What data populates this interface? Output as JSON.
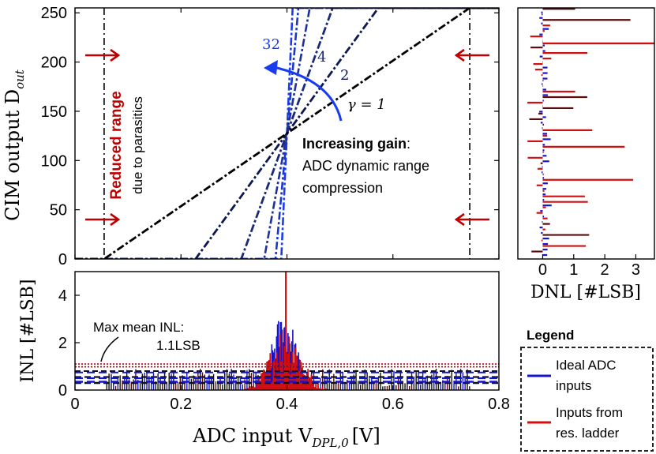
{
  "chart_data": [
    {
      "id": "transfer",
      "type": "line",
      "ylabel": "CIM output D",
      "ylabel_sub": "out",
      "xlim": [
        0,
        0.8
      ],
      "ylim": [
        0,
        255
      ],
      "xticks": [
        0,
        0.2,
        0.4,
        0.6,
        0.8
      ],
      "yticks": [
        0,
        50,
        100,
        150,
        200,
        250
      ],
      "center": 0.4,
      "center_code": 127.5,
      "range_min": 0.055,
      "range_max": 0.745,
      "series": [
        {
          "name": "gamma=1",
          "gain": 1,
          "color": "#000000",
          "label": "γ = 1"
        },
        {
          "name": "2",
          "gain": 2,
          "color": "#0d1850",
          "label": "2"
        },
        {
          "name": "4",
          "gain": 4,
          "color": "#1a2a78",
          "label": "4"
        },
        {
          "name": "8",
          "gain": 8,
          "color": "#20309a"
        },
        {
          "name": "16",
          "gain": 16,
          "color": "#1838c8"
        },
        {
          "name": "32",
          "gain": 32,
          "color": "#1a3cf0",
          "label": "32"
        }
      ],
      "annotations": {
        "reduced_range": "Reduced range",
        "due_to": "due to parasitics",
        "increasing_gain": "Increasing gain",
        "colon": ":",
        "compression_line1": "ADC dynamic range",
        "compression_line2": "compression"
      }
    },
    {
      "id": "dnl",
      "type": "bar",
      "xlabel": "DNL [#LSB]",
      "xlim": [
        -0.8,
        3.6
      ],
      "xticks": [
        0,
        1,
        2,
        3
      ],
      "ylim": [
        0,
        255
      ],
      "series": [
        {
          "name": "Ideal ADC inputs",
          "color": "#1515d0"
        },
        {
          "name": "Inputs from res. ladder",
          "color": "#d01010"
        }
      ]
    },
    {
      "id": "inl",
      "type": "bar",
      "xlabel": "ADC input V",
      "xlabel_sub": "DPL,0",
      "xlabel_unit": "[V]",
      "ylabel": "INL [#LSB]",
      "xlim": [
        0,
        0.8
      ],
      "ylim": [
        0,
        5
      ],
      "xticks": [
        0,
        0.2,
        0.4,
        0.6,
        0.8
      ],
      "yticks": [
        0,
        2,
        4
      ],
      "mean_levels": [
        0.3,
        0.55,
        0.8,
        1.1
      ],
      "annotation_line1": "Max mean INL:",
      "annotation_line2": "1.1LSB",
      "series": [
        {
          "name": "Ideal ADC inputs",
          "color": "#1515d0"
        },
        {
          "name": "Inputs from res. ladder",
          "color": "#d01010"
        }
      ]
    }
  ],
  "legend": {
    "title": "Legend",
    "items": [
      {
        "line1": "Ideal ADC",
        "line2": "inputs",
        "color": "#1515d0"
      },
      {
        "line1": "Inputs from",
        "line2": "res. ladder",
        "color": "#d01010"
      }
    ]
  }
}
